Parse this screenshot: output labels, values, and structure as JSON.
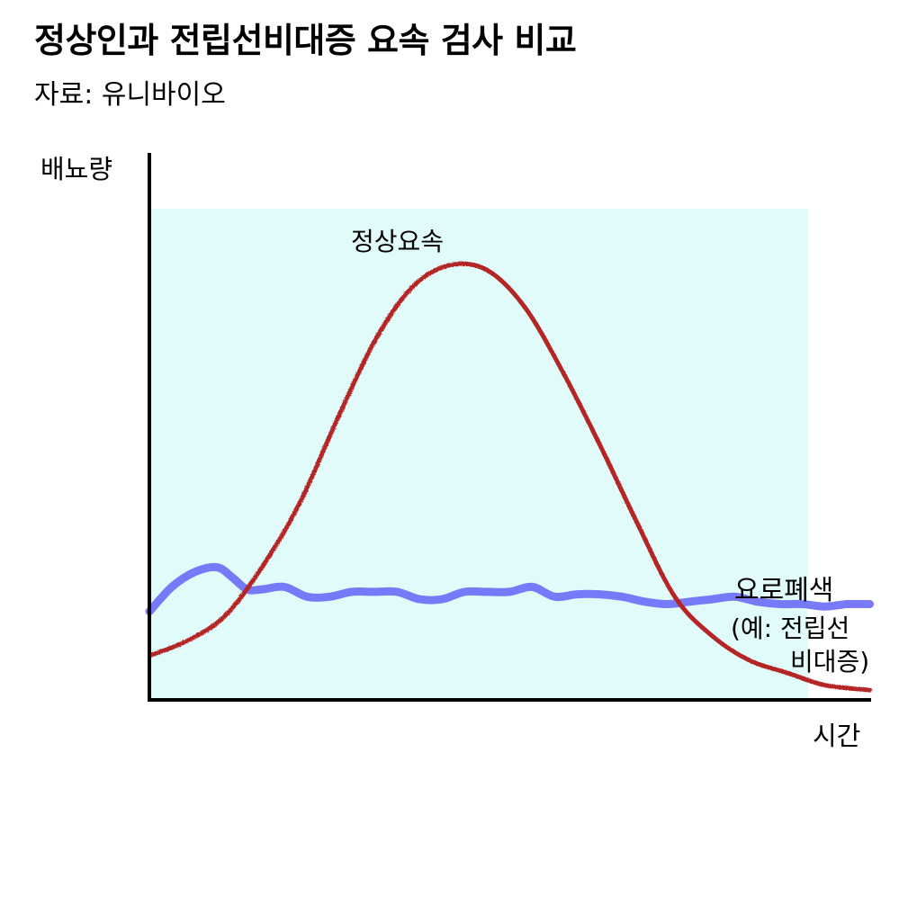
{
  "header": {
    "title": "정상인과 전립선비대증 요속 검사 비교",
    "subtitle": "자료: 유니바이오"
  },
  "chart_data": {
    "type": "line",
    "title": "정상인과 전립선비대증 요속 검사 비교",
    "subtitle": "자료: 유니바이오",
    "xlabel": "시간",
    "ylabel": "배뇨량",
    "grid": false,
    "x_ticks": false,
    "y_ticks": false,
    "xlim": [
      0,
      100
    ],
    "ylim": [
      0,
      100
    ],
    "background_color": "#e0fbfa",
    "series": [
      {
        "name": "정상요속",
        "color": "#b42828",
        "x": [
          0,
          5,
          10,
          15,
          20,
          25,
          30,
          35,
          40,
          45,
          50,
          55,
          60,
          65,
          70,
          75,
          80,
          85,
          90,
          96
        ],
        "y": [
          9,
          12,
          17,
          27,
          40,
          57,
          73,
          84,
          88.5,
          87.5,
          80,
          67,
          52,
          36,
          21,
          13,
          8,
          5.5,
          3,
          2
        ]
      },
      {
        "name": "요로폐색",
        "name_note": [
          "(예: 전립선",
          "비대증)"
        ],
        "color": "#6c6cf7",
        "x": [
          0,
          3,
          6,
          9,
          11,
          13,
          15,
          18,
          21,
          24,
          27,
          30,
          33,
          36,
          39,
          42,
          45,
          48,
          51,
          54,
          57,
          60,
          63,
          66,
          69,
          72,
          75,
          78,
          81,
          84,
          87,
          90,
          93,
          96
        ],
        "y": [
          18,
          23,
          26,
          27,
          25,
          22.5,
          22.5,
          23,
          21,
          21,
          22,
          22,
          22,
          20.5,
          20.5,
          22,
          22,
          22,
          23,
          21,
          21.5,
          21.5,
          21,
          20,
          19.5,
          20,
          20.5,
          21,
          20,
          19.5,
          19.5,
          19,
          19.5,
          19.5
        ]
      }
    ]
  }
}
